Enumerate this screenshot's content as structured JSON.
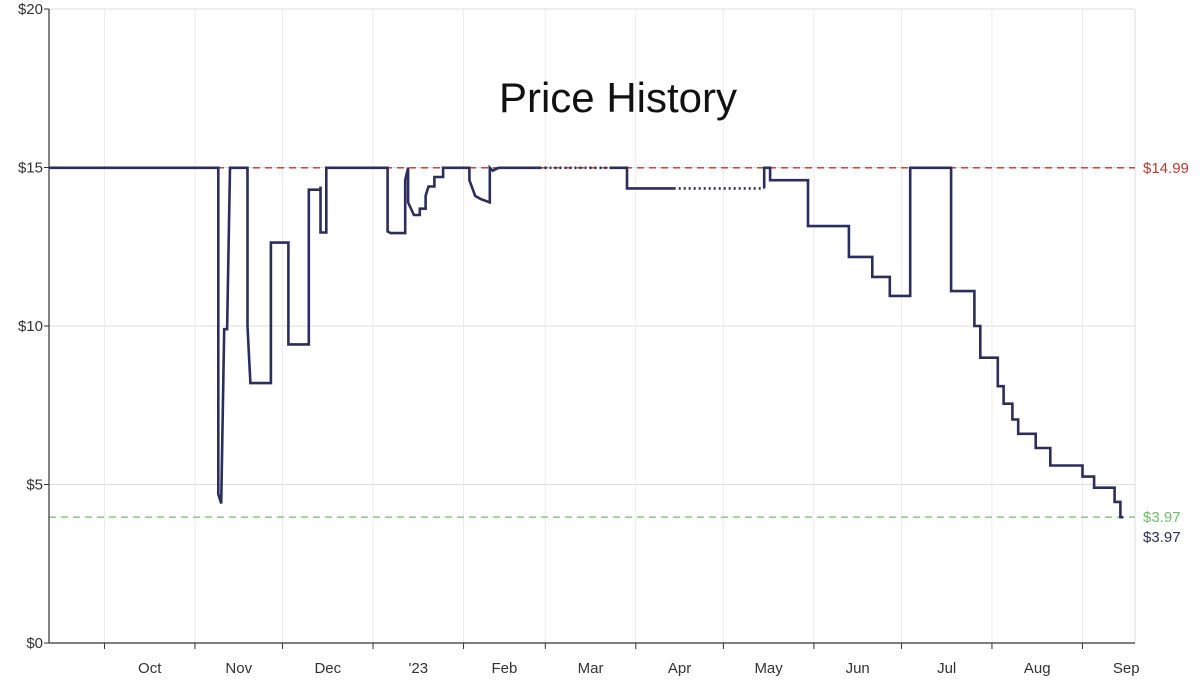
{
  "chart_data": {
    "type": "line",
    "title": "Price History",
    "xlabel": "",
    "ylabel": "",
    "ylim": [
      0,
      20
    ],
    "xlim": [
      "2022-09-12",
      "2023-09-19"
    ],
    "grid": true,
    "y_ticks": [
      {
        "value": 0,
        "label": "$0"
      },
      {
        "value": 5,
        "label": "$5"
      },
      {
        "value": 10,
        "label": "$10"
      },
      {
        "value": 15,
        "label": "$15"
      },
      {
        "value": 20,
        "label": "$20"
      }
    ],
    "x_ticks": [
      {
        "date": "2022-10-01",
        "label": "Oct"
      },
      {
        "date": "2022-11-01",
        "label": "Nov"
      },
      {
        "date": "2022-12-01",
        "label": "Dec"
      },
      {
        "date": "2023-01-01",
        "label": "'23"
      },
      {
        "date": "2023-02-01",
        "label": "Feb"
      },
      {
        "date": "2023-03-01",
        "label": "Mar"
      },
      {
        "date": "2023-04-01",
        "label": "Apr"
      },
      {
        "date": "2023-05-01",
        "label": "May"
      },
      {
        "date": "2023-06-01",
        "label": "Jun"
      },
      {
        "date": "2023-07-01",
        "label": "Jul"
      },
      {
        "date": "2023-08-01",
        "label": "Aug"
      },
      {
        "date": "2023-09-01",
        "label": "Sep"
      }
    ],
    "reference_lines": [
      {
        "value": 14.99,
        "label": "$14.99",
        "color": "#c0392b"
      },
      {
        "value": 3.97,
        "label": "$3.97",
        "color": "#6cbf6a"
      }
    ],
    "current_label": "$3.97",
    "series": [
      {
        "color": "#2b2d5e",
        "step": true,
        "segments": [
          {
            "style": "solid",
            "points": [
              [
                "2022-09-12",
                14.99
              ],
              [
                "2022-11-09",
                14.99
              ],
              [
                "2022-11-09",
                4.7
              ],
              [
                "2022-11-10",
                4.4
              ],
              [
                "2022-11-11",
                9.9
              ],
              [
                "2022-11-12",
                9.9
              ],
              [
                "2022-11-13",
                14.99
              ],
              [
                "2022-11-19",
                14.99
              ],
              [
                "2022-11-19",
                9.99
              ],
              [
                "2022-11-20",
                8.2
              ],
              [
                "2022-11-27",
                8.2
              ],
              [
                "2022-11-27",
                12.63
              ],
              [
                "2022-12-03",
                12.63
              ],
              [
                "2022-12-03",
                9.42
              ],
              [
                "2022-12-10",
                9.42
              ],
              [
                "2022-12-10",
                14.3
              ],
              [
                "2022-12-14",
                14.3
              ],
              [
                "2022-12-14",
                14.4
              ],
              [
                "2022-12-14",
                12.95
              ],
              [
                "2022-12-16",
                12.95
              ],
              [
                "2022-12-16",
                14.99
              ],
              [
                "2023-01-06",
                14.99
              ],
              [
                "2023-01-06",
                12.98
              ],
              [
                "2023-01-07",
                12.93
              ],
              [
                "2023-01-12",
                12.93
              ],
              [
                "2023-01-12",
                14.6
              ],
              [
                "2023-01-13",
                14.99
              ],
              [
                "2023-01-13",
                13.9
              ],
              [
                "2023-01-15",
                13.5
              ],
              [
                "2023-01-17",
                13.5
              ],
              [
                "2023-01-17",
                13.7
              ],
              [
                "2023-01-19",
                13.7
              ],
              [
                "2023-01-19",
                14.1
              ],
              [
                "2023-01-20",
                14.4
              ],
              [
                "2023-01-22",
                14.4
              ],
              [
                "2023-01-22",
                14.7
              ],
              [
                "2023-01-25",
                14.7
              ],
              [
                "2023-01-25",
                14.99
              ],
              [
                "2023-02-03",
                14.99
              ],
              [
                "2023-02-03",
                14.6
              ],
              [
                "2023-02-05",
                14.1
              ],
              [
                "2023-02-07",
                14.0
              ],
              [
                "2023-02-10",
                13.9
              ],
              [
                "2023-02-10",
                14.99
              ],
              [
                "2023-02-11",
                14.9
              ],
              [
                "2023-02-13",
                14.99
              ],
              [
                "2023-02-27",
                14.99
              ]
            ]
          },
          {
            "style": "dotted",
            "points": [
              [
                "2023-02-27",
                14.99
              ],
              [
                "2023-03-23",
                14.99
              ]
            ]
          },
          {
            "style": "solid",
            "points": [
              [
                "2023-03-23",
                14.99
              ],
              [
                "2023-03-29",
                14.99
              ],
              [
                "2023-03-29",
                14.34
              ],
              [
                "2023-04-14",
                14.34
              ]
            ]
          },
          {
            "style": "dotted",
            "points": [
              [
                "2023-04-14",
                14.34
              ],
              [
                "2023-05-15",
                14.34
              ]
            ]
          },
          {
            "style": "solid",
            "points": [
              [
                "2023-05-15",
                14.34
              ],
              [
                "2023-05-15",
                14.99
              ],
              [
                "2023-05-17",
                14.99
              ],
              [
                "2023-05-17",
                14.6
              ],
              [
                "2023-05-30",
                14.6
              ],
              [
                "2023-05-30",
                13.15
              ],
              [
                "2023-06-13",
                13.15
              ],
              [
                "2023-06-13",
                12.18
              ],
              [
                "2023-06-21",
                12.18
              ],
              [
                "2023-06-21",
                11.55
              ],
              [
                "2023-06-27",
                11.55
              ],
              [
                "2023-06-27",
                10.95
              ],
              [
                "2023-07-04",
                10.95
              ],
              [
                "2023-07-04",
                14.99
              ],
              [
                "2023-07-18",
                14.99
              ],
              [
                "2023-07-18",
                11.1
              ],
              [
                "2023-07-26",
                11.1
              ],
              [
                "2023-07-26",
                10.0
              ],
              [
                "2023-07-28",
                10.0
              ],
              [
                "2023-07-28",
                9.0
              ],
              [
                "2023-08-03",
                9.0
              ],
              [
                "2023-08-03",
                8.1
              ],
              [
                "2023-08-05",
                8.1
              ],
              [
                "2023-08-05",
                7.55
              ],
              [
                "2023-08-08",
                7.55
              ],
              [
                "2023-08-08",
                7.05
              ],
              [
                "2023-08-10",
                7.05
              ],
              [
                "2023-08-10",
                6.6
              ],
              [
                "2023-08-16",
                6.6
              ],
              [
                "2023-08-16",
                6.15
              ],
              [
                "2023-08-21",
                6.15
              ],
              [
                "2023-08-21",
                5.6
              ],
              [
                "2023-09-01",
                5.6
              ],
              [
                "2023-09-01",
                5.25
              ],
              [
                "2023-09-05",
                5.25
              ],
              [
                "2023-09-05",
                4.9
              ],
              [
                "2023-09-12",
                4.9
              ],
              [
                "2023-09-12",
                4.45
              ],
              [
                "2023-09-14",
                4.45
              ],
              [
                "2023-09-14",
                3.97
              ],
              [
                "2023-09-15",
                3.97
              ]
            ]
          }
        ]
      }
    ]
  }
}
